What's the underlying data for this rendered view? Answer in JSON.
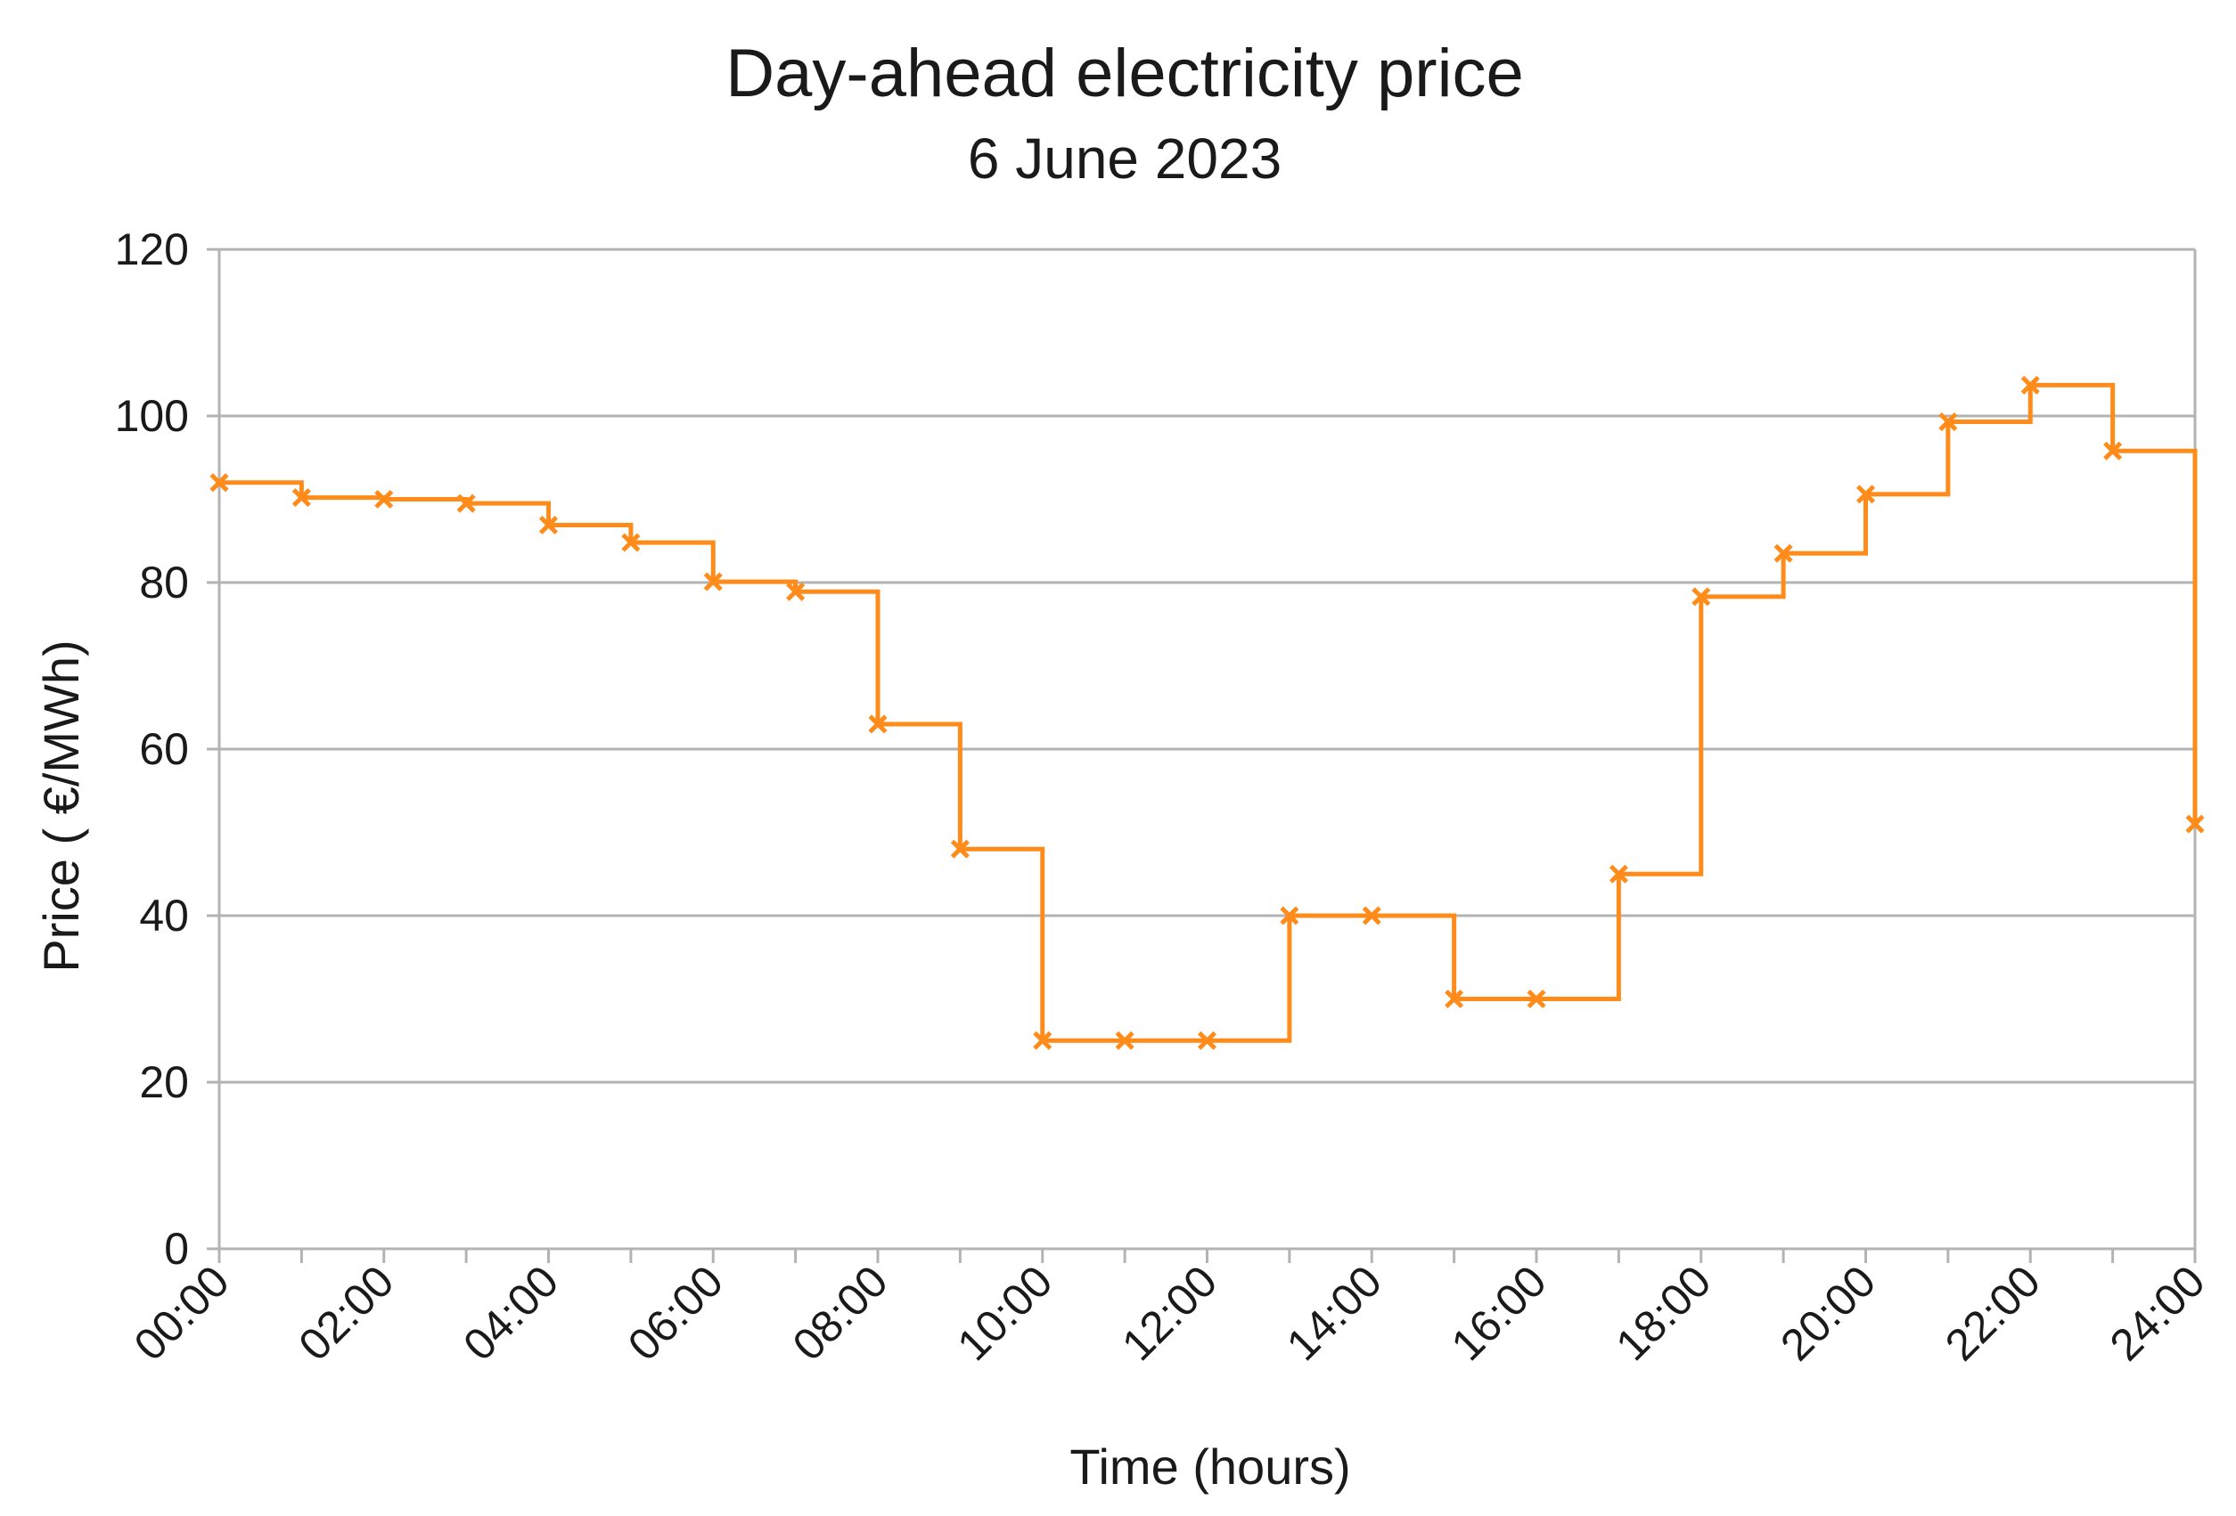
{
  "chart_data": {
    "type": "line",
    "title": "Day-ahead electricity price",
    "subtitle": "6 June 2023",
    "xlabel": "Time (hours)",
    "ylabel": "Price ( €/MWh)",
    "ylim": [
      0,
      120
    ],
    "yticks": [
      0,
      20,
      40,
      60,
      80,
      100,
      120
    ],
    "xlim": [
      0,
      24
    ],
    "xticks": [
      {
        "hour": 0,
        "label": "00:00"
      },
      {
        "hour": 2,
        "label": "02:00"
      },
      {
        "hour": 4,
        "label": "04:00"
      },
      {
        "hour": 6,
        "label": "06:00"
      },
      {
        "hour": 8,
        "label": "08:00"
      },
      {
        "hour": 10,
        "label": "10:00"
      },
      {
        "hour": 12,
        "label": "12:00"
      },
      {
        "hour": 14,
        "label": "14:00"
      },
      {
        "hour": 16,
        "label": "16:00"
      },
      {
        "hour": 18,
        "label": "18:00"
      },
      {
        "hour": 20,
        "label": "20:00"
      },
      {
        "hour": 22,
        "label": "22:00"
      },
      {
        "hour": 24,
        "label": "24:00"
      }
    ],
    "grid": true,
    "line_style": "step",
    "marker": "x",
    "series": [
      {
        "name": "Price",
        "color": "#ff8c1a",
        "x": [
          0,
          1,
          2,
          3,
          4,
          5,
          6,
          7,
          8,
          9,
          10,
          11,
          12,
          13,
          14,
          15,
          16,
          17,
          18,
          19,
          20,
          21,
          22,
          23,
          24
        ],
        "values": [
          92.0,
          90.2,
          90.0,
          89.5,
          86.9,
          84.8,
          80.1,
          78.9,
          63.0,
          48.0,
          25.0,
          25.0,
          25.0,
          40.0,
          40.0,
          30.0,
          30.0,
          45.0,
          78.3,
          83.5,
          90.6,
          99.3,
          103.7,
          95.8,
          51.0
        ]
      }
    ]
  }
}
